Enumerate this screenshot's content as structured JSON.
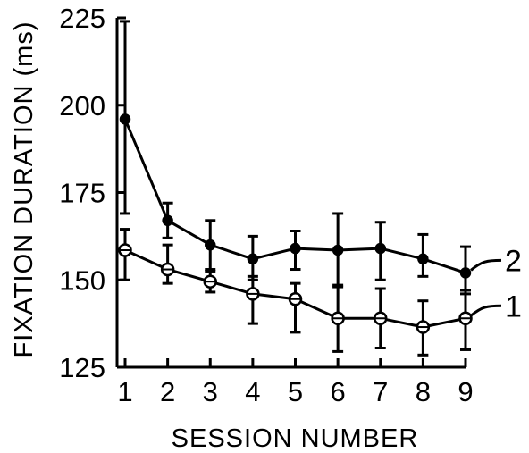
{
  "chart_data": {
    "type": "line",
    "title": "",
    "xlabel": "SESSION NUMBER",
    "ylabel": "FIXATION DURATION (ms)",
    "x": [
      1,
      2,
      3,
      4,
      5,
      6,
      7,
      8,
      9
    ],
    "x_ticks": [
      "1",
      "2",
      "3",
      "4",
      "5",
      "6",
      "7",
      "8",
      "9"
    ],
    "y_ticks": [
      "125",
      "150",
      "175",
      "200",
      "225"
    ],
    "xlim": [
      1,
      9
    ],
    "ylim": [
      125,
      225
    ],
    "grid": false,
    "legend": "inline labels at right end of lines",
    "series": [
      {
        "name": "2",
        "marker": "filled-circle",
        "values": [
          196,
          167,
          160,
          156,
          159,
          158.5,
          159,
          156,
          152
        ],
        "error_low": [
          169,
          162,
          153,
          150,
          153,
          148,
          150,
          151,
          146
        ],
        "error_high": [
          224,
          172,
          167,
          162.5,
          164,
          169,
          166.5,
          163,
          159.5
        ]
      },
      {
        "name": "1",
        "marker": "open-circle",
        "values": [
          158.5,
          153,
          149.5,
          146,
          144.5,
          139,
          139,
          136.5,
          139
        ],
        "error_low": [
          150,
          149,
          146.5,
          137.5,
          135,
          129.5,
          130.5,
          128.5,
          130
        ],
        "error_high": [
          164.5,
          160,
          152.5,
          151,
          149,
          148.5,
          147.5,
          144,
          147
        ]
      }
    ]
  }
}
